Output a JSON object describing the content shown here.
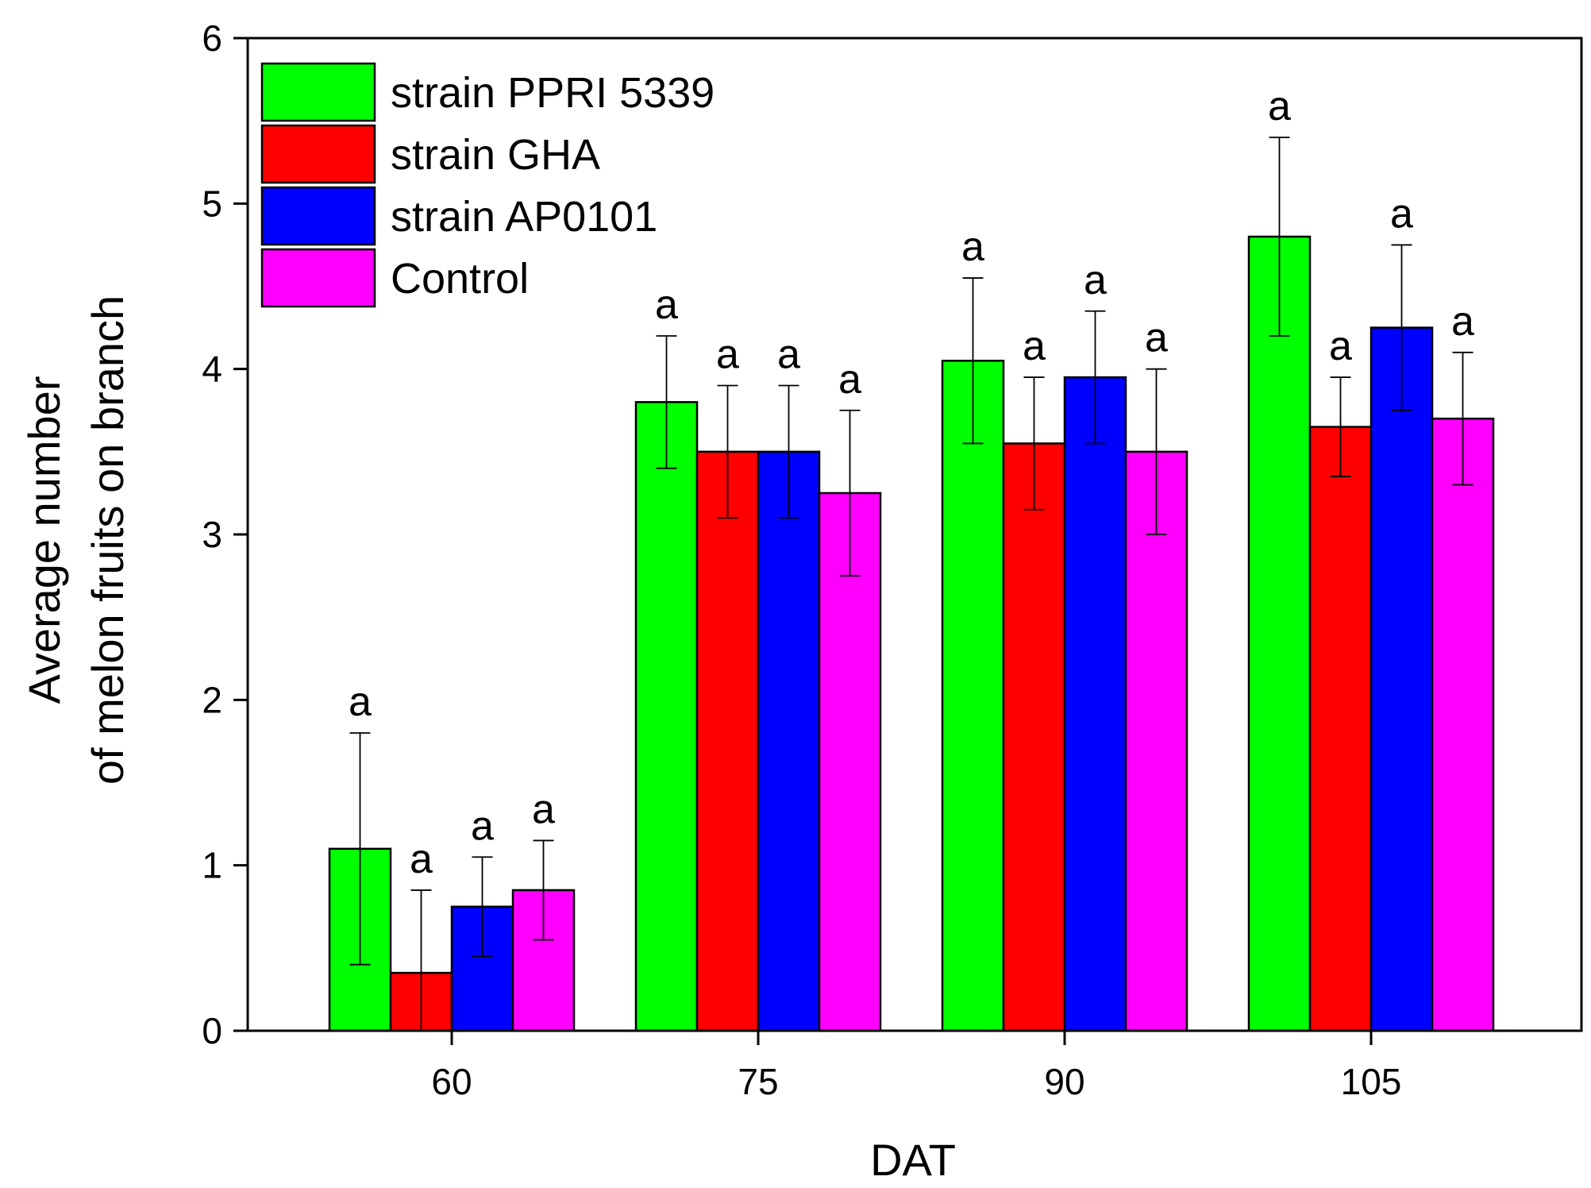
{
  "chart_data": {
    "type": "bar",
    "title": "",
    "xlabel": "DAT",
    "ylabel_line1": "Average number",
    "ylabel_line2": "of melon fruits on branch",
    "categories": [
      "60",
      "75",
      "90",
      "105"
    ],
    "ylim": [
      0,
      6
    ],
    "yticks": [
      "0",
      "1",
      "2",
      "3",
      "4",
      "5",
      "6"
    ],
    "legend_position": "top-left",
    "series": [
      {
        "name": "strain PPRI 5339",
        "color": "#00ff00",
        "values": [
          1.1,
          3.8,
          4.05,
          4.8
        ],
        "errors": [
          0.7,
          0.4,
          0.5,
          0.6
        ],
        "labels": [
          "a",
          "a",
          "a",
          "a"
        ]
      },
      {
        "name": "strain GHA",
        "color": "#ff0000",
        "values": [
          0.35,
          3.5,
          3.55,
          3.65
        ],
        "errors": [
          0.5,
          0.4,
          0.4,
          0.3
        ],
        "labels": [
          "a",
          "a",
          "a",
          "a"
        ]
      },
      {
        "name": "strain AP0101",
        "color": "#0000ff",
        "values": [
          0.75,
          3.5,
          3.95,
          4.25
        ],
        "errors": [
          0.3,
          0.4,
          0.4,
          0.5
        ],
        "labels": [
          "a",
          "a",
          "a",
          "a"
        ]
      },
      {
        "name": "Control",
        "color": "#ff00ff",
        "values": [
          0.85,
          3.25,
          3.5,
          3.7
        ],
        "errors": [
          0.3,
          0.5,
          0.5,
          0.4
        ],
        "labels": [
          "a",
          "a",
          "a",
          "a"
        ]
      }
    ]
  }
}
